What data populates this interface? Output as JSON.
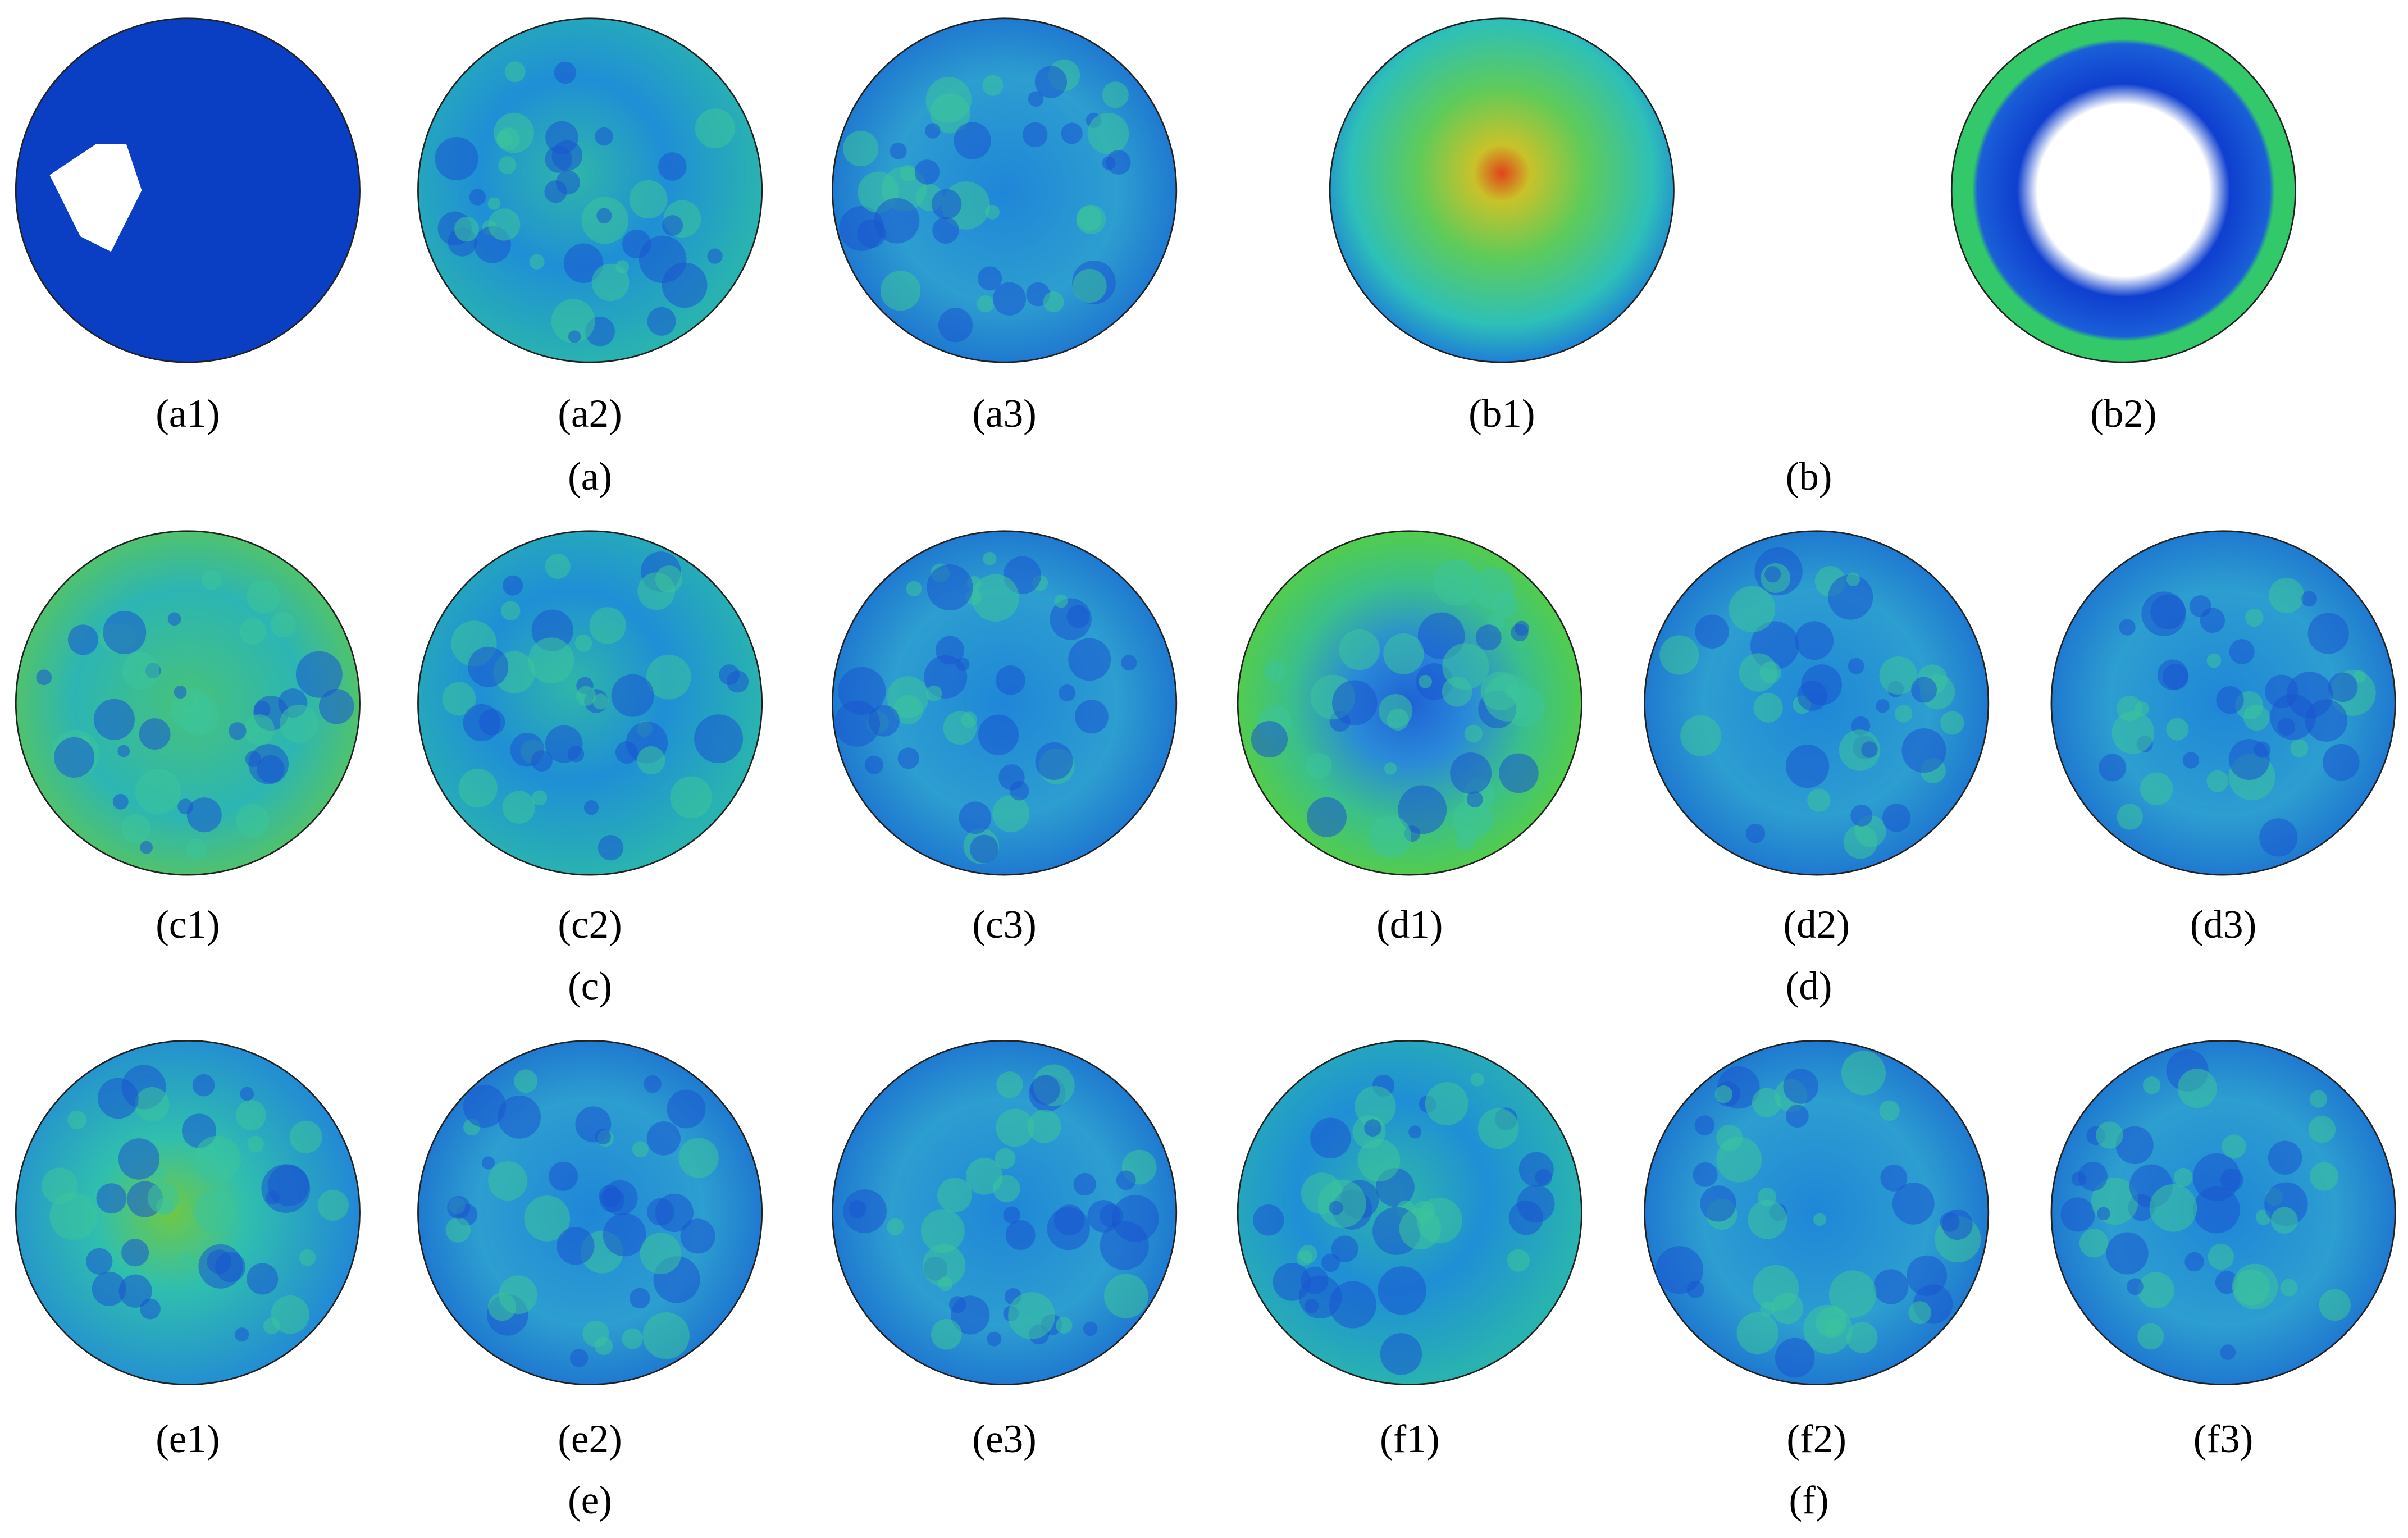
{
  "panels": [
    {
      "label": "(a1)"
    },
    {
      "label": "(a2)"
    },
    {
      "label": "(a3)"
    },
    {
      "label": "(b1)"
    },
    {
      "label": "(b2)"
    },
    {
      "label": "(c1)"
    },
    {
      "label": "(c2)"
    },
    {
      "label": "(c3)"
    },
    {
      "label": "(d1)"
    },
    {
      "label": "(d2)"
    },
    {
      "label": "(d3)"
    },
    {
      "label": "(e1)"
    },
    {
      "label": "(e2)"
    },
    {
      "label": "(e3)"
    },
    {
      "label": "(f1)"
    },
    {
      "label": "(f2)"
    },
    {
      "label": "(f3)"
    }
  ],
  "groups": [
    {
      "label": "(a)"
    },
    {
      "label": "(b)"
    },
    {
      "label": "(c)"
    },
    {
      "label": "(d)"
    },
    {
      "label": "(e)"
    },
    {
      "label": "(f)"
    }
  ]
}
